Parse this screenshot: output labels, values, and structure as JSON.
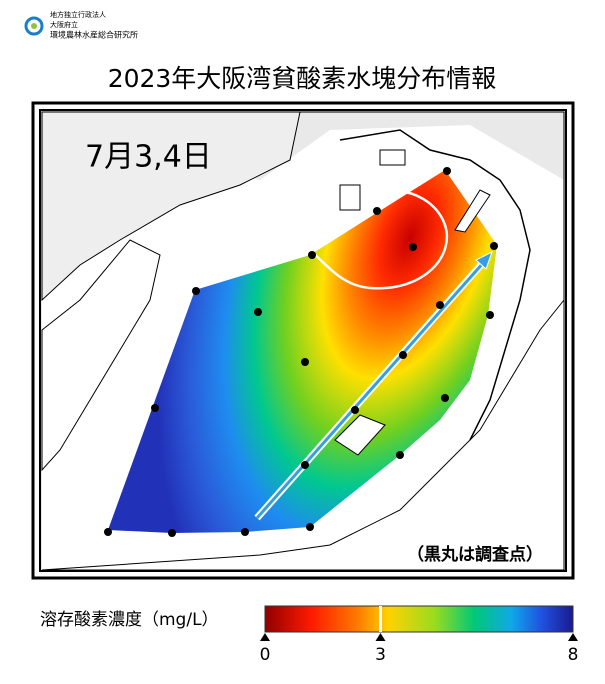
{
  "header": {
    "org": [
      "地方独立行政法人",
      "大阪府立",
      "環境農林水産総合研究所"
    ],
    "title": "2023年大阪湾貧酸素水塊分布情報"
  },
  "map": {
    "date": "7月3,4日",
    "note": "（黒丸は調査点）"
  },
  "legend": {
    "label": "溶存酸素濃度（mg/L）",
    "lim": [
      0,
      8
    ],
    "ticks": [
      0,
      3,
      8
    ]
  }
}
